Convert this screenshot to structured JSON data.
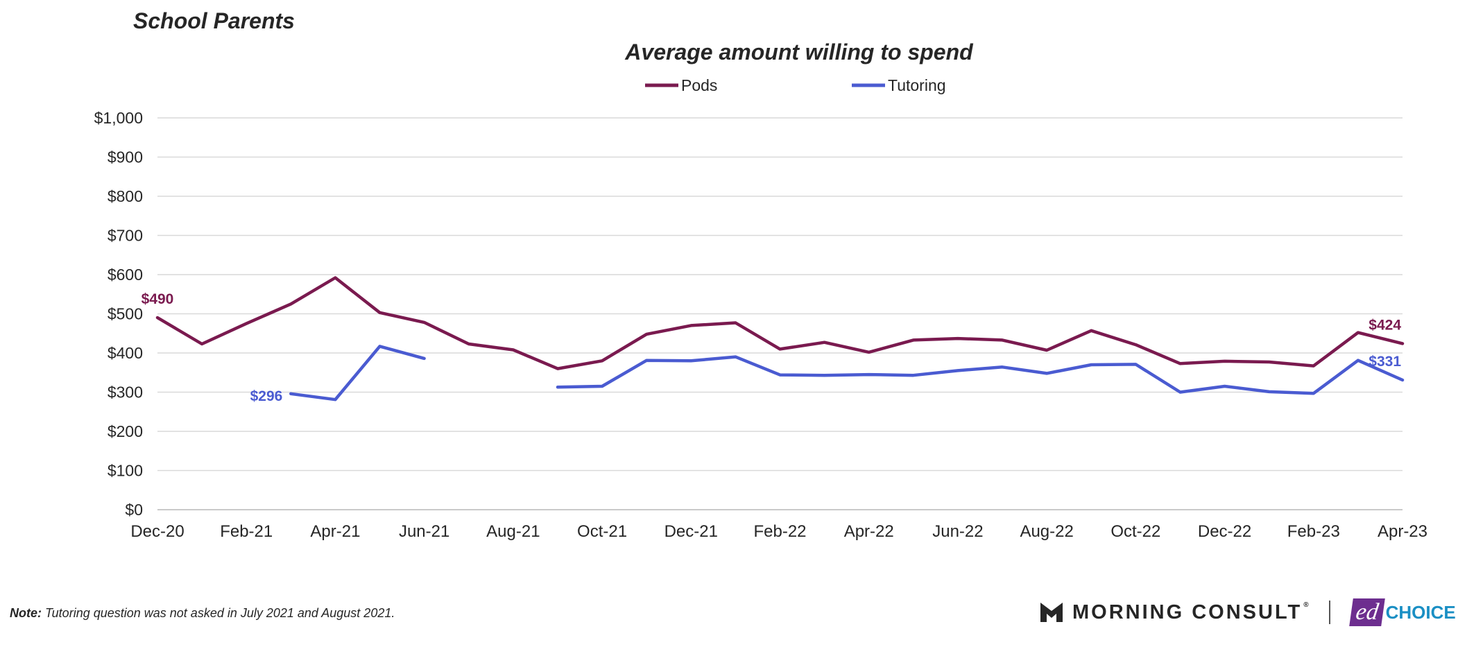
{
  "header": {
    "group": "School Parents"
  },
  "note": {
    "label": "Note:",
    "text": "Tutoring question was not asked in July 2021 and August 2021."
  },
  "logos": {
    "morning_consult": "MORNING CONSULT",
    "morning_consult_reg": "®",
    "edchoice_ed": "ed",
    "edchoice_choice": "CHOICE"
  },
  "colors": {
    "pods": "#7a1a4f",
    "tutoring": "#4a5bd1",
    "grid": "#d9d9d9",
    "text": "#262626"
  },
  "chart_data": {
    "type": "line",
    "title": "Average amount willing to spend",
    "xlabel": "",
    "ylabel": "",
    "ylim": [
      0,
      1000
    ],
    "y_ticks": [
      0,
      100,
      200,
      300,
      400,
      500,
      600,
      700,
      800,
      900,
      1000
    ],
    "y_tick_labels": [
      "$0",
      "$100",
      "$200",
      "$300",
      "$400",
      "$500",
      "$600",
      "$700",
      "$800",
      "$900",
      "$1,000"
    ],
    "x": [
      "Dec-20",
      "Jan-21",
      "Feb-21",
      "Mar-21",
      "Apr-21",
      "May-21",
      "Jun-21",
      "Jul-21",
      "Aug-21",
      "Sep-21",
      "Oct-21",
      "Nov-21",
      "Dec-21",
      "Jan-22",
      "Feb-22",
      "Mar-22",
      "Apr-22",
      "May-22",
      "Jun-22",
      "Jul-22",
      "Aug-22",
      "Sep-22",
      "Oct-22",
      "Nov-22",
      "Dec-22",
      "Jan-23",
      "Feb-23",
      "Mar-23",
      "Apr-23"
    ],
    "x_tick_labels": [
      "Dec-20",
      "Feb-21",
      "Apr-21",
      "Jun-21",
      "Aug-21",
      "Oct-21",
      "Dec-21",
      "Feb-22",
      "Apr-22",
      "Jun-22",
      "Aug-22",
      "Oct-22",
      "Dec-22",
      "Feb-23",
      "Apr-23"
    ],
    "series": [
      {
        "name": "Pods",
        "values": [
          490,
          423,
          475,
          525,
          592,
          503,
          478,
          423,
          408,
          360,
          380,
          448,
          470,
          477,
          410,
          427,
          402,
          433,
          437,
          433,
          407,
          457,
          421,
          373,
          379,
          377,
          367,
          452,
          424
        ]
      },
      {
        "name": "Tutoring",
        "values": [
          null,
          null,
          null,
          296,
          281,
          417,
          386,
          null,
          null,
          313,
          315,
          381,
          380,
          390,
          344,
          343,
          345,
          343,
          355,
          364,
          348,
          370,
          371,
          300,
          315,
          301,
          297,
          381,
          331
        ]
      }
    ],
    "data_labels": [
      {
        "series": "Pods",
        "x": "Dec-20",
        "text": "$490"
      },
      {
        "series": "Tutoring",
        "x": "Mar-21",
        "text": "$296"
      },
      {
        "series": "Pods",
        "x": "Apr-23",
        "text": "$424"
      },
      {
        "series": "Tutoring",
        "x": "Apr-23",
        "text": "$331"
      }
    ],
    "legend": "top-center",
    "grid": true
  }
}
